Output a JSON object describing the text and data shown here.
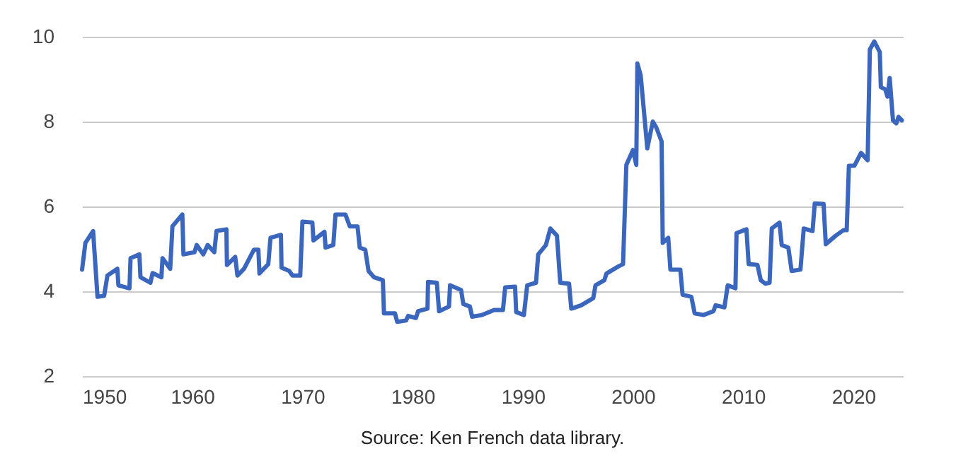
{
  "chart_data": {
    "type": "line",
    "annotations": [
      "Source: Ken French data library."
    ],
    "xlim": [
      1950,
      2024.5
    ],
    "xticks": [
      1950,
      1960,
      1970,
      1980,
      1990,
      2000,
      2010,
      2020
    ],
    "ylim": [
      2,
      10
    ],
    "yticks": [
      2,
      4,
      6,
      8,
      10
    ],
    "grid": "y",
    "marker": "none",
    "line_style": "solid",
    "series": [
      {
        "color": "#3a67bd",
        "x": [
          1950.0,
          1950.3,
          1951.0,
          1951.4,
          1952.0,
          1952.3,
          1953.2,
          1953.3,
          1954.3,
          1954.4,
          1955.2,
          1955.3,
          1956.2,
          1956.4,
          1957.2,
          1957.3,
          1958.0,
          1958.2,
          1959.1,
          1959.2,
          1960.2,
          1960.4,
          1961.0,
          1961.4,
          1962.0,
          1962.2,
          1963.1,
          1963.15,
          1963.9,
          1964.1,
          1964.7,
          1965.6,
          1966.0,
          1966.1,
          1966.9,
          1967.1,
          1968.05,
          1968.1,
          1968.8,
          1969.1,
          1969.8,
          1970.0,
          1970.9,
          1971.0,
          1972.0,
          1972.1,
          1972.8,
          1973.0,
          1973.9,
          1974.3,
          1975.0,
          1975.2,
          1975.7,
          1976.0,
          1976.5,
          1977.3,
          1977.4,
          1978.4,
          1978.6,
          1979.4,
          1979.6,
          1980.3,
          1980.5,
          1981.35,
          1981.4,
          1982.2,
          1982.4,
          1983.3,
          1983.4,
          1984.4,
          1984.6,
          1985.2,
          1985.4,
          1986.3,
          1987.4,
          1988.2,
          1988.4,
          1989.3,
          1989.4,
          1990.1,
          1990.4,
          1991.2,
          1991.4,
          1992.1,
          1992.5,
          1993.1,
          1993.4,
          1994.2,
          1994.4,
          1995.3,
          1996.4,
          1996.6,
          1997.4,
          1997.6,
          1998.7,
          1999.1,
          1999.4,
          2000.0,
          2000.3,
          2000.4,
          2000.7,
          2001.3,
          2001.8,
          2002.1,
          2002.6,
          2002.7,
          2003.2,
          2003.4,
          2004.3,
          2004.5,
          2005.3,
          2005.6,
          2006.4,
          2007.3,
          2007.5,
          2008.3,
          2008.6,
          2009.3,
          2009.4,
          2010.3,
          2010.5,
          2011.3,
          2011.6,
          2012.0,
          2012.4,
          2012.6,
          2013.3,
          2013.5,
          2014.1,
          2014.4,
          2015.2,
          2015.5,
          2016.3,
          2016.5,
          2017.3,
          2017.5,
          2018.4,
          2019.1,
          2019.4,
          2019.6,
          2020.1,
          2020.7,
          2021.3,
          2021.5,
          2021.9,
          2022.4,
          2022.5,
          2022.9,
          2023.1,
          2023.3,
          2023.6,
          2023.9,
          2024.1,
          2024.4
        ],
        "values": [
          4.51,
          5.14,
          5.42,
          3.87,
          3.89,
          4.37,
          4.53,
          4.14,
          4.07,
          4.78,
          4.87,
          4.33,
          4.2,
          4.43,
          4.33,
          4.78,
          4.53,
          5.53,
          5.81,
          4.87,
          4.92,
          5.09,
          4.87,
          5.09,
          4.92,
          5.42,
          5.46,
          4.62,
          4.81,
          4.37,
          4.53,
          4.98,
          4.98,
          4.42,
          4.64,
          5.26,
          5.33,
          4.56,
          4.48,
          4.37,
          4.37,
          5.64,
          5.62,
          5.2,
          5.4,
          5.03,
          5.09,
          5.81,
          5.81,
          5.53,
          5.53,
          5.03,
          4.98,
          4.48,
          4.33,
          4.26,
          3.48,
          3.48,
          3.28,
          3.31,
          3.42,
          3.37,
          3.53,
          3.59,
          4.22,
          4.2,
          3.53,
          3.64,
          4.14,
          4.03,
          3.7,
          3.64,
          3.4,
          3.44,
          3.56,
          3.56,
          4.09,
          4.11,
          3.51,
          3.44,
          4.14,
          4.2,
          4.87,
          5.09,
          5.48,
          5.31,
          4.2,
          4.18,
          3.59,
          3.67,
          3.84,
          4.14,
          4.26,
          4.42,
          4.59,
          4.64,
          6.98,
          7.33,
          6.98,
          9.37,
          9.09,
          7.37,
          8.0,
          7.87,
          7.53,
          5.14,
          5.26,
          4.51,
          4.51,
          3.92,
          3.87,
          3.48,
          3.44,
          3.53,
          3.67,
          3.62,
          4.14,
          4.07,
          5.37,
          5.46,
          4.64,
          4.62,
          4.26,
          4.18,
          4.2,
          5.48,
          5.62,
          5.09,
          5.03,
          4.48,
          4.51,
          5.48,
          5.42,
          6.07,
          6.06,
          5.11,
          5.31,
          5.44,
          5.44,
          6.96,
          6.96,
          7.26,
          7.09,
          9.7,
          9.89,
          9.64,
          8.81,
          8.76,
          8.59,
          9.03,
          8.03,
          7.96,
          8.11,
          8.03
        ]
      }
    ]
  }
}
